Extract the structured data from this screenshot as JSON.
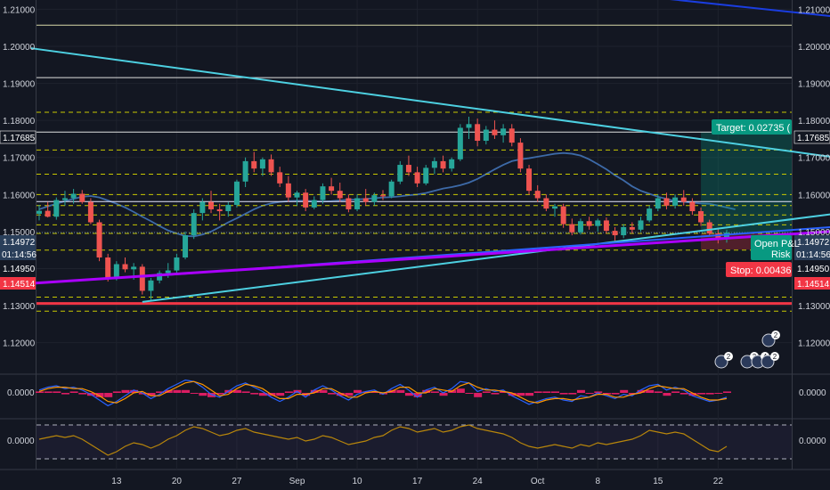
{
  "chart_data": {
    "type": "candlestick",
    "title": "",
    "price_axis": {
      "ticks": [
        "1.21000",
        "1.20000",
        "1.19000",
        "1.18000",
        "1.17000",
        "1.16000",
        "1.15000",
        "1.14000",
        "1.13000",
        "1.12000"
      ],
      "tick_values": [
        1.21,
        1.2,
        1.19,
        1.18,
        1.17,
        1.16,
        1.15,
        1.14,
        1.13,
        1.12
      ],
      "ylim": [
        1.1115,
        1.2125
      ]
    },
    "time_axis": {
      "labels": [
        "13",
        "20",
        "27",
        "Sep",
        "10",
        "17",
        "24",
        "Oct",
        "8",
        "15",
        "22"
      ],
      "label_bars": [
        9,
        16,
        23,
        30,
        37,
        44,
        51,
        58,
        65,
        72,
        79
      ]
    },
    "badges": {
      "target_price": "1.17685",
      "current_price": "1.14972",
      "countdown": "01:14:56",
      "level_1": "1.14950",
      "stop_price": "1.14514"
    },
    "position_tool": {
      "entry_label": "Open P&L",
      "risk_label": "Risk",
      "target_label": "Target: 0.02735 (",
      "stop_label": "Stop: 0.00436",
      "entry": 1.14949,
      "target": 1.17685,
      "stop": 1.14514
    },
    "horizontal_levels": [
      {
        "price": 1.2057,
        "style": "solid",
        "color": "#d8d8a8"
      },
      {
        "price": 1.19155,
        "style": "solid",
        "color": "#e0e0e0"
      },
      {
        "price": 1.17685,
        "style": "solid",
        "color": "#e0e0e0"
      },
      {
        "price": 1.1822,
        "style": "dashed",
        "color": "#c8c800"
      },
      {
        "price": 1.172,
        "style": "dashed",
        "color": "#c8c800"
      },
      {
        "price": 1.1655,
        "style": "dashed",
        "color": "#c8c800"
      },
      {
        "price": 1.16,
        "style": "dashed",
        "color": "#c8c800"
      },
      {
        "price": 1.157,
        "style": "dashed",
        "color": "#c8c800"
      },
      {
        "price": 1.1545,
        "style": "dashed",
        "color": "#c8c800"
      },
      {
        "price": 1.1518,
        "style": "dashed",
        "color": "#c8c800"
      },
      {
        "price": 1.1495,
        "style": "dashed",
        "color": "#c8c800"
      },
      {
        "price": 1.145,
        "style": "dashed",
        "color": "#c8c800"
      },
      {
        "price": 1.1323,
        "style": "dashed",
        "color": "#c8c800"
      },
      {
        "price": 1.1285,
        "style": "dashed",
        "color": "#c8c800"
      },
      {
        "price": 1.1306,
        "style": "solid",
        "color": "#f23645"
      },
      {
        "price": 1.1581,
        "style": "solid",
        "color": "#e8e8ff"
      }
    ],
    "trend_lines": [
      {
        "name": "cyan-downtrend",
        "color": "#4dd0e1",
        "from": [
          -1,
          1.1995
        ],
        "to": [
          100,
          1.1677
        ]
      },
      {
        "name": "cyan-uptrend",
        "color": "#4dd0e1",
        "from": [
          12,
          1.131
        ],
        "to": [
          100,
          1.157
        ]
      },
      {
        "name": "blue-uptrend",
        "color": "#2962ff",
        "from": [
          12,
          1.1378
        ],
        "to": [
          100,
          1.1525
        ]
      },
      {
        "name": "purple-uptrend",
        "color": "#aa00ff",
        "from": [
          -1,
          1.136
        ],
        "to": [
          100,
          1.1512
        ]
      },
      {
        "name": "blue-top",
        "color": "#1a3de0",
        "from": [
          56,
          1.217
        ],
        "to": [
          100,
          1.2062
        ]
      }
    ],
    "moving_average_color": "#3d6aa8",
    "candles": [
      {
        "o": 1.1548,
        "h": 1.1572,
        "l": 1.153,
        "c": 1.1556
      },
      {
        "o": 1.1556,
        "h": 1.158,
        "l": 1.1538,
        "c": 1.154
      },
      {
        "o": 1.154,
        "h": 1.1592,
        "l": 1.1532,
        "c": 1.1585
      },
      {
        "o": 1.1585,
        "h": 1.161,
        "l": 1.157,
        "c": 1.159
      },
      {
        "o": 1.159,
        "h": 1.1615,
        "l": 1.1575,
        "c": 1.1602
      },
      {
        "o": 1.1602,
        "h": 1.1612,
        "l": 1.1575,
        "c": 1.158
      },
      {
        "o": 1.158,
        "h": 1.159,
        "l": 1.152,
        "c": 1.1525
      },
      {
        "o": 1.1525,
        "h": 1.1532,
        "l": 1.142,
        "c": 1.143
      },
      {
        "o": 1.143,
        "h": 1.144,
        "l": 1.1365,
        "c": 1.1375
      },
      {
        "o": 1.1375,
        "h": 1.142,
        "l": 1.1368,
        "c": 1.1412
      },
      {
        "o": 1.1412,
        "h": 1.143,
        "l": 1.139,
        "c": 1.1398
      },
      {
        "o": 1.1398,
        "h": 1.1415,
        "l": 1.137,
        "c": 1.1405
      },
      {
        "o": 1.1405,
        "h": 1.1412,
        "l": 1.133,
        "c": 1.134
      },
      {
        "o": 1.134,
        "h": 1.1375,
        "l": 1.1315,
        "c": 1.1368
      },
      {
        "o": 1.1368,
        "h": 1.1395,
        "l": 1.136,
        "c": 1.1388
      },
      {
        "o": 1.1388,
        "h": 1.1415,
        "l": 1.1375,
        "c": 1.1395
      },
      {
        "o": 1.1395,
        "h": 1.144,
        "l": 1.1385,
        "c": 1.143
      },
      {
        "o": 1.143,
        "h": 1.15,
        "l": 1.1425,
        "c": 1.149
      },
      {
        "o": 1.149,
        "h": 1.156,
        "l": 1.148,
        "c": 1.155
      },
      {
        "o": 1.155,
        "h": 1.159,
        "l": 1.153,
        "c": 1.158
      },
      {
        "o": 1.158,
        "h": 1.161,
        "l": 1.155,
        "c": 1.156
      },
      {
        "o": 1.156,
        "h": 1.1575,
        "l": 1.153,
        "c": 1.1555
      },
      {
        "o": 1.1555,
        "h": 1.158,
        "l": 1.154,
        "c": 1.1572
      },
      {
        "o": 1.1572,
        "h": 1.164,
        "l": 1.1565,
        "c": 1.1635
      },
      {
        "o": 1.1635,
        "h": 1.17,
        "l": 1.162,
        "c": 1.169
      },
      {
        "o": 1.169,
        "h": 1.1715,
        "l": 1.166,
        "c": 1.167
      },
      {
        "o": 1.167,
        "h": 1.17,
        "l": 1.165,
        "c": 1.1695
      },
      {
        "o": 1.1695,
        "h": 1.1708,
        "l": 1.165,
        "c": 1.166
      },
      {
        "o": 1.166,
        "h": 1.1675,
        "l": 1.162,
        "c": 1.163
      },
      {
        "o": 1.163,
        "h": 1.165,
        "l": 1.158,
        "c": 1.1592
      },
      {
        "o": 1.1592,
        "h": 1.161,
        "l": 1.157,
        "c": 1.1605
      },
      {
        "o": 1.1605,
        "h": 1.1615,
        "l": 1.1555,
        "c": 1.1565
      },
      {
        "o": 1.1565,
        "h": 1.1595,
        "l": 1.156,
        "c": 1.1585
      },
      {
        "o": 1.1585,
        "h": 1.163,
        "l": 1.1575,
        "c": 1.1622
      },
      {
        "o": 1.1622,
        "h": 1.1645,
        "l": 1.16,
        "c": 1.161
      },
      {
        "o": 1.161,
        "h": 1.1632,
        "l": 1.158,
        "c": 1.159
      },
      {
        "o": 1.159,
        "h": 1.16,
        "l": 1.1552,
        "c": 1.156
      },
      {
        "o": 1.156,
        "h": 1.16,
        "l": 1.1555,
        "c": 1.159
      },
      {
        "o": 1.159,
        "h": 1.1615,
        "l": 1.157,
        "c": 1.158
      },
      {
        "o": 1.158,
        "h": 1.1605,
        "l": 1.157,
        "c": 1.1598
      },
      {
        "o": 1.1598,
        "h": 1.1612,
        "l": 1.1585,
        "c": 1.1595
      },
      {
        "o": 1.1595,
        "h": 1.164,
        "l": 1.159,
        "c": 1.1635
      },
      {
        "o": 1.1635,
        "h": 1.169,
        "l": 1.1628,
        "c": 1.168
      },
      {
        "o": 1.168,
        "h": 1.1705,
        "l": 1.165,
        "c": 1.166
      },
      {
        "o": 1.166,
        "h": 1.1675,
        "l": 1.162,
        "c": 1.163
      },
      {
        "o": 1.163,
        "h": 1.168,
        "l": 1.1625,
        "c": 1.1672
      },
      {
        "o": 1.1672,
        "h": 1.17,
        "l": 1.1655,
        "c": 1.169
      },
      {
        "o": 1.169,
        "h": 1.1705,
        "l": 1.166,
        "c": 1.167
      },
      {
        "o": 1.167,
        "h": 1.17,
        "l": 1.1662,
        "c": 1.1695
      },
      {
        "o": 1.1695,
        "h": 1.179,
        "l": 1.169,
        "c": 1.178
      },
      {
        "o": 1.178,
        "h": 1.181,
        "l": 1.175,
        "c": 1.179
      },
      {
        "o": 1.179,
        "h": 1.1805,
        "l": 1.173,
        "c": 1.1745
      },
      {
        "o": 1.1745,
        "h": 1.1785,
        "l": 1.1735,
        "c": 1.1775
      },
      {
        "o": 1.1775,
        "h": 1.18,
        "l": 1.175,
        "c": 1.176
      },
      {
        "o": 1.176,
        "h": 1.179,
        "l": 1.174,
        "c": 1.1778
      },
      {
        "o": 1.1778,
        "h": 1.179,
        "l": 1.173,
        "c": 1.174
      },
      {
        "o": 1.174,
        "h": 1.1752,
        "l": 1.166,
        "c": 1.167
      },
      {
        "o": 1.167,
        "h": 1.168,
        "l": 1.16,
        "c": 1.161
      },
      {
        "o": 1.161,
        "h": 1.1625,
        "l": 1.158,
        "c": 1.159
      },
      {
        "o": 1.159,
        "h": 1.16,
        "l": 1.1555,
        "c": 1.1562
      },
      {
        "o": 1.1562,
        "h": 1.1575,
        "l": 1.154,
        "c": 1.1568
      },
      {
        "o": 1.1568,
        "h": 1.1575,
        "l": 1.151,
        "c": 1.152
      },
      {
        "o": 1.152,
        "h": 1.1535,
        "l": 1.149,
        "c": 1.1498
      },
      {
        "o": 1.1498,
        "h": 1.1535,
        "l": 1.1492,
        "c": 1.1528
      },
      {
        "o": 1.1528,
        "h": 1.154,
        "l": 1.1505,
        "c": 1.1515
      },
      {
        "o": 1.1515,
        "h": 1.1535,
        "l": 1.15,
        "c": 1.153
      },
      {
        "o": 1.153,
        "h": 1.1538,
        "l": 1.1495,
        "c": 1.1502
      },
      {
        "o": 1.1502,
        "h": 1.1512,
        "l": 1.1475,
        "c": 1.149
      },
      {
        "o": 1.149,
        "h": 1.152,
        "l": 1.1482,
        "c": 1.1512
      },
      {
        "o": 1.1512,
        "h": 1.1525,
        "l": 1.1495,
        "c": 1.1505
      },
      {
        "o": 1.1505,
        "h": 1.154,
        "l": 1.15,
        "c": 1.153
      },
      {
        "o": 1.153,
        "h": 1.157,
        "l": 1.1525,
        "c": 1.1562
      },
      {
        "o": 1.1562,
        "h": 1.16,
        "l": 1.1555,
        "c": 1.159
      },
      {
        "o": 1.159,
        "h": 1.1605,
        "l": 1.156,
        "c": 1.157
      },
      {
        "o": 1.157,
        "h": 1.16,
        "l": 1.1562,
        "c": 1.1592
      },
      {
        "o": 1.1592,
        "h": 1.1612,
        "l": 1.157,
        "c": 1.158
      },
      {
        "o": 1.158,
        "h": 1.159,
        "l": 1.1545,
        "c": 1.1555
      },
      {
        "o": 1.1555,
        "h": 1.1565,
        "l": 1.1515,
        "c": 1.1525
      },
      {
        "o": 1.1525,
        "h": 1.1532,
        "l": 1.149,
        "c": 1.1495
      },
      {
        "o": 1.1495,
        "h": 1.151,
        "l": 1.1468,
        "c": 1.148
      },
      {
        "o": 1.148,
        "h": 1.1505,
        "l": 1.147,
        "c": 1.1497
      }
    ],
    "ma_values": [
      1.156,
      1.1568,
      1.1575,
      1.1582,
      1.1588,
      1.1594,
      1.1596,
      1.1592,
      1.1584,
      1.1575,
      1.1565,
      1.1553,
      1.154,
      1.1528,
      1.1515,
      1.1503,
      1.1495,
      1.1488,
      1.1487,
      1.1492,
      1.15,
      1.1512,
      1.1525,
      1.1536,
      1.1548,
      1.156,
      1.157,
      1.1576,
      1.158,
      1.1582,
      1.1583,
      1.1583,
      1.1582,
      1.1581,
      1.1582,
      1.1584,
      1.1586,
      1.1587,
      1.1588,
      1.159,
      1.1592,
      1.1593,
      1.1595,
      1.1598,
      1.16,
      1.1604,
      1.161,
      1.1616,
      1.162,
      1.1625,
      1.1632,
      1.1642,
      1.1655,
      1.1668,
      1.168,
      1.169,
      1.1695,
      1.1698,
      1.1702,
      1.1706,
      1.171,
      1.1712,
      1.171,
      1.1705,
      1.1695,
      1.1682,
      1.1668,
      1.1652,
      1.1638,
      1.1622,
      1.161,
      1.1602,
      1.1594,
      1.1588,
      1.1582,
      1.158,
      1.1578,
      1.1576,
      1.1575,
      1.157,
      1.1565,
      1.156
    ],
    "oscillator_1": {
      "zero_label": "0.0000",
      "ylim": [
        -1,
        1
      ],
      "macd": [
        0.2,
        0.4,
        0.5,
        0.3,
        0.4,
        0.2,
        -0.1,
        -0.5,
        -0.9,
        -0.6,
        -0.2,
        0.2,
        0.0,
        -0.4,
        -0.1,
        0.3,
        0.6,
        0.9,
        0.8,
        0.4,
        -0.1,
        -0.3,
        0.1,
        0.5,
        0.7,
        0.4,
        0.1,
        -0.3,
        -0.6,
        -0.3,
        0.1,
        -0.3,
        0.2,
        0.5,
        0.2,
        -0.2,
        -0.5,
        -0.1,
        0.1,
        0.2,
        -0.1,
        0.3,
        0.6,
        0.2,
        -0.3,
        0.2,
        0.4,
        0.0,
        0.3,
        0.8,
        0.7,
        0.1,
        0.3,
        0.1,
        0.2,
        -0.2,
        -0.5,
        -0.8,
        -0.6,
        -0.4,
        -0.3,
        -0.5,
        -0.6,
        -0.2,
        -0.3,
        0.0,
        -0.2,
        -0.4,
        -0.1,
        -0.2,
        0.2,
        0.5,
        0.6,
        0.2,
        0.4,
        0.2,
        -0.2,
        -0.4,
        -0.6,
        -0.5,
        -0.3
      ],
      "signal": [
        0.1,
        0.3,
        0.4,
        0.4,
        0.3,
        0.3,
        0.1,
        -0.2,
        -0.6,
        -0.7,
        -0.4,
        0.0,
        0.1,
        -0.2,
        -0.2,
        0.1,
        0.4,
        0.7,
        0.8,
        0.6,
        0.2,
        -0.2,
        -0.1,
        0.3,
        0.6,
        0.5,
        0.3,
        -0.1,
        -0.4,
        -0.4,
        -0.1,
        -0.1,
        0.0,
        0.3,
        0.3,
        0.0,
        -0.3,
        -0.3,
        0.0,
        0.1,
        0.0,
        0.1,
        0.4,
        0.4,
        0.0,
        0.0,
        0.3,
        0.2,
        0.1,
        0.5,
        0.7,
        0.4,
        0.2,
        0.2,
        0.1,
        0.0,
        -0.3,
        -0.6,
        -0.7,
        -0.5,
        -0.4,
        -0.4,
        -0.5,
        -0.4,
        -0.3,
        -0.1,
        -0.1,
        -0.3,
        -0.3,
        -0.1,
        0.0,
        0.3,
        0.5,
        0.4,
        0.3,
        0.3,
        0.0,
        -0.3,
        -0.5,
        -0.5,
        -0.4
      ]
    },
    "oscillator_2": {
      "zero_label": "0.0000",
      "ylim": [
        -1,
        1
      ],
      "values": [
        0.1,
        0.2,
        0.3,
        0.2,
        0.3,
        0.1,
        -0.2,
        -0.5,
        -0.8,
        -0.6,
        -0.3,
        -0.1,
        -0.2,
        -0.4,
        -0.2,
        0.1,
        0.3,
        0.6,
        0.8,
        0.7,
        0.5,
        0.3,
        0.4,
        0.6,
        0.7,
        0.5,
        0.4,
        0.3,
        0.2,
        0.1,
        0.2,
        0.0,
        0.1,
        0.3,
        0.2,
        0.0,
        -0.2,
        -0.1,
        0.0,
        0.2,
        0.3,
        0.6,
        0.8,
        0.7,
        0.5,
        0.6,
        0.7,
        0.5,
        0.6,
        0.8,
        0.9,
        0.7,
        0.6,
        0.5,
        0.4,
        0.2,
        -0.1,
        -0.3,
        -0.4,
        -0.3,
        -0.2,
        -0.3,
        -0.4,
        -0.2,
        -0.3,
        -0.1,
        -0.2,
        -0.1,
        0.0,
        0.1,
        0.3,
        0.6,
        0.5,
        0.4,
        0.5,
        0.4,
        0.1,
        -0.2,
        -0.5,
        -0.6,
        -0.3
      ]
    },
    "event_markers": [
      "2",
      "3",
      "4",
      "2",
      "2"
    ]
  }
}
